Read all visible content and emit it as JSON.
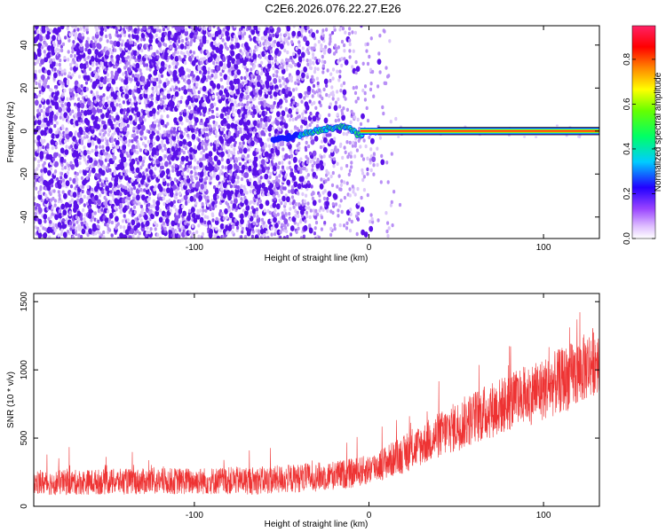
{
  "title": "C2E6.2026.076.22.27.E26",
  "chart_data": [
    {
      "type": "heatmap",
      "name": "spectrogram",
      "xlabel": "Height of straight line (km)",
      "ylabel": "Frequency (Hz)",
      "xlim": [
        -192,
        132
      ],
      "ylim": [
        -50,
        49
      ],
      "xticks": [
        -100,
        0,
        100
      ],
      "xtick_labels": [
        "-100",
        "0",
        "100"
      ],
      "yticks": [
        -40,
        -20,
        0,
        20,
        40
      ],
      "ytick_labels": [
        "-40",
        "-20",
        "0",
        "20",
        "40"
      ],
      "colorbar": {
        "label": "Normalized spectral amplitude",
        "range": [
          0,
          0.95
        ],
        "ticks": [
          0.0,
          0.2,
          0.4,
          0.6,
          0.8
        ],
        "tick_labels": [
          "0.0",
          "0.2",
          "0.4",
          "0.6",
          "0.8"
        ],
        "colors": [
          "#ffffff",
          "#cc88ff",
          "#3300ff",
          "#00ffff",
          "#00ff00",
          "#ffff00",
          "#ff0000",
          "#ff2266"
        ]
      },
      "signal_line": {
        "description_points_km_hz": [
          [
            -55,
            -4
          ],
          [
            -45,
            -3
          ],
          [
            -35,
            -1
          ],
          [
            -25,
            1
          ],
          [
            -15,
            2
          ],
          [
            -10,
            1
          ],
          [
            -5,
            -2
          ],
          [
            0,
            0
          ],
          [
            10,
            0
          ],
          [
            132,
            0
          ]
        ],
        "strong_from_km": 5
      },
      "noise_fade_km": [
        -60,
        15
      ]
    },
    {
      "type": "line",
      "name": "snr",
      "xlabel": "Height of straight line (km)",
      "ylabel": "SNR (10 * v/v)",
      "xlim": [
        -192,
        132
      ],
      "ylim": [
        0,
        1560
      ],
      "xticks": [
        -100,
        0,
        100
      ],
      "xtick_labels": [
        "-100",
        "0",
        "100"
      ],
      "yticks": [
        0,
        500,
        1000,
        1500
      ],
      "ytick_labels": [
        "0",
        "500",
        "1000",
        "1500"
      ],
      "color": "#ee3333",
      "trend_km_snr": [
        [
          -192,
          170
        ],
        [
          -150,
          180
        ],
        [
          -100,
          185
        ],
        [
          -60,
          190
        ],
        [
          -30,
          215
        ],
        [
          -10,
          240
        ],
        [
          0,
          270
        ],
        [
          20,
          380
        ],
        [
          40,
          520
        ],
        [
          60,
          650
        ],
        [
          80,
          760
        ],
        [
          100,
          860
        ],
        [
          120,
          980
        ],
        [
          132,
          1100
        ]
      ],
      "noise_amplitude": [
        [
          -192,
          90
        ],
        [
          0,
          110
        ],
        [
          60,
          200
        ],
        [
          132,
          260
        ]
      ]
    }
  ]
}
